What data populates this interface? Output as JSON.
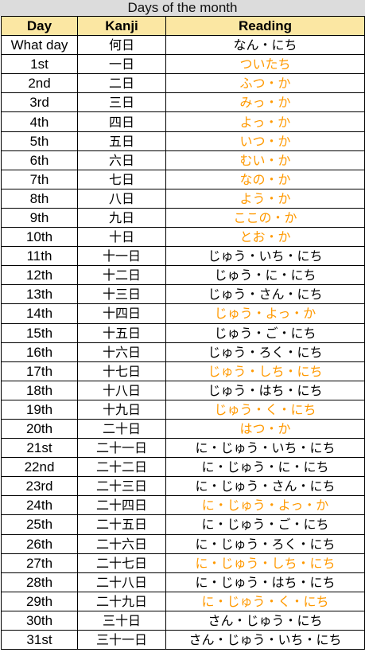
{
  "title": "Days of the month",
  "headers": [
    "Day",
    "Kanji",
    "Reading"
  ],
  "colors": {
    "header_bg": "#fbe7a3",
    "irregular": "#ff9900",
    "caption_bg": "#dcdcdc"
  },
  "rows": [
    {
      "day": "What day",
      "kanji": "何日",
      "reading": "なん・にち",
      "irregular": false
    },
    {
      "day": "1st",
      "kanji": "一日",
      "reading": "ついたち",
      "irregular": true
    },
    {
      "day": "2nd",
      "kanji": "二日",
      "reading": "ふつ・か",
      "irregular": true
    },
    {
      "day": "3rd",
      "kanji": "三日",
      "reading": "みっ・か",
      "irregular": true
    },
    {
      "day": "4th",
      "kanji": "四日",
      "reading": "よっ・か",
      "irregular": true
    },
    {
      "day": "5th",
      "kanji": "五日",
      "reading": "いつ・か",
      "irregular": true
    },
    {
      "day": "6th",
      "kanji": "六日",
      "reading": "むい・か",
      "irregular": true
    },
    {
      "day": "7th",
      "kanji": "七日",
      "reading": "なの・か",
      "irregular": true
    },
    {
      "day": "8th",
      "kanji": "八日",
      "reading": "よう・か",
      "irregular": true
    },
    {
      "day": "9th",
      "kanji": "九日",
      "reading": "ここの・か",
      "irregular": true
    },
    {
      "day": "10th",
      "kanji": "十日",
      "reading": "とお・か",
      "irregular": true
    },
    {
      "day": "11th",
      "kanji": "十一日",
      "reading": "じゅう・いち・にち",
      "irregular": false
    },
    {
      "day": "12th",
      "kanji": "十二日",
      "reading": "じゅう・に・にち",
      "irregular": false
    },
    {
      "day": "13th",
      "kanji": "十三日",
      "reading": "じゅう・さん・にち",
      "irregular": false
    },
    {
      "day": "14th",
      "kanji": "十四日",
      "reading": "じゅう・よっ・か",
      "irregular": true
    },
    {
      "day": "15th",
      "kanji": "十五日",
      "reading": "じゅう・ご・にち",
      "irregular": false
    },
    {
      "day": "16th",
      "kanji": "十六日",
      "reading": "じゅう・ろく・にち",
      "irregular": false
    },
    {
      "day": "17th",
      "kanji": "十七日",
      "reading": "じゅう・しち・にち",
      "irregular": true
    },
    {
      "day": "18th",
      "kanji": "十八日",
      "reading": "じゅう・はち・にち",
      "irregular": false
    },
    {
      "day": "19th",
      "kanji": "十九日",
      "reading": "じゅう・く・にち",
      "irregular": true
    },
    {
      "day": "20th",
      "kanji": "二十日",
      "reading": "はつ・か",
      "irregular": true
    },
    {
      "day": "21st",
      "kanji": "二十一日",
      "reading": "に・じゅう・いち・にち",
      "irregular": false
    },
    {
      "day": "22nd",
      "kanji": "二十二日",
      "reading": "に・じゅう・に・にち",
      "irregular": false
    },
    {
      "day": "23rd",
      "kanji": "二十三日",
      "reading": "に・じゅう・さん・にち",
      "irregular": false
    },
    {
      "day": "24th",
      "kanji": "二十四日",
      "reading": "に・じゅう・よっ・か",
      "irregular": true
    },
    {
      "day": "25th",
      "kanji": "二十五日",
      "reading": "に・じゅう・ご・にち",
      "irregular": false
    },
    {
      "day": "26th",
      "kanji": "二十六日",
      "reading": "に・じゅう・ろく・にち",
      "irregular": false
    },
    {
      "day": "27th",
      "kanji": "二十七日",
      "reading": "に・じゅう・しち・にち",
      "irregular": true
    },
    {
      "day": "28th",
      "kanji": "二十八日",
      "reading": "に・じゅう・はち・にち",
      "irregular": false
    },
    {
      "day": "29th",
      "kanji": "二十九日",
      "reading": "に・じゅう・く・にち",
      "irregular": true
    },
    {
      "day": "30th",
      "kanji": "三十日",
      "reading": "さん・じゅう・にち",
      "irregular": false
    },
    {
      "day": "31st",
      "kanji": "三十一日",
      "reading": "さん・じゅう・いち・にち",
      "irregular": false
    }
  ]
}
